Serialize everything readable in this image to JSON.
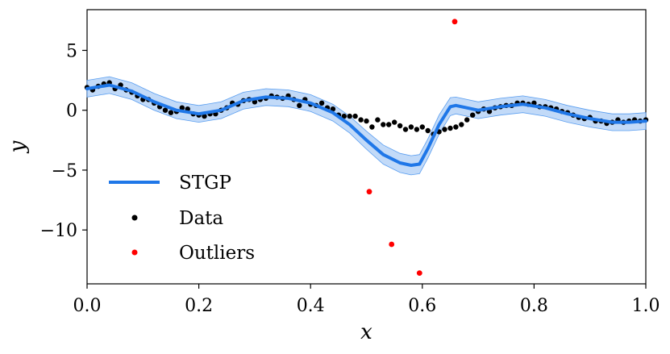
{
  "chart_data": {
    "type": "scatter",
    "title": "",
    "xlabel": "x",
    "ylabel": "y",
    "xlim": [
      0.0,
      1.0
    ],
    "ylim": [
      -14.5,
      8.4
    ],
    "xticks": [
      0.0,
      0.2,
      0.4,
      0.6,
      0.8,
      1.0
    ],
    "xtick_labels": [
      "0.0",
      "0.2",
      "0.4",
      "0.6",
      "0.8",
      "1.0"
    ],
    "yticks": [
      5,
      0,
      -5,
      -10
    ],
    "ytick_labels": [
      "5",
      "0",
      "−5",
      "−10"
    ],
    "grid": false,
    "legend": {
      "position": "lower-left",
      "entries": [
        "STGP",
        "Data",
        "Outliers"
      ]
    },
    "series": [
      {
        "name": "STGP",
        "kind": "line+band",
        "color": "#1f77e8",
        "band_color": "#aecdf5",
        "x": [
          0.0,
          0.04,
          0.08,
          0.12,
          0.16,
          0.2,
          0.24,
          0.28,
          0.32,
          0.36,
          0.4,
          0.44,
          0.47,
          0.5,
          0.53,
          0.56,
          0.58,
          0.595,
          0.61,
          0.63,
          0.65,
          0.66,
          0.7,
          0.74,
          0.78,
          0.82,
          0.86,
          0.9,
          0.94,
          0.97,
          1.0
        ],
        "y": [
          1.8,
          2.1,
          1.6,
          0.7,
          0.0,
          -0.3,
          0.0,
          0.8,
          1.1,
          1.0,
          0.6,
          -0.2,
          -1.2,
          -2.5,
          -3.7,
          -4.4,
          -4.6,
          -4.5,
          -3.2,
          -1.2,
          0.3,
          0.4,
          0.0,
          0.3,
          0.5,
          0.2,
          -0.3,
          -0.7,
          -1.0,
          -1.0,
          -0.9
        ],
        "band_halfwidth": [
          0.7,
          0.7,
          0.7,
          0.7,
          0.7,
          0.7,
          0.7,
          0.7,
          0.7,
          0.7,
          0.7,
          0.7,
          0.7,
          0.75,
          0.8,
          0.8,
          0.8,
          0.8,
          0.8,
          0.8,
          0.75,
          0.7,
          0.7,
          0.7,
          0.7,
          0.7,
          0.7,
          0.7,
          0.7,
          0.7,
          0.7
        ]
      },
      {
        "name": "Data",
        "kind": "points",
        "color": "#000000",
        "x": [
          0.0,
          0.01,
          0.02,
          0.03,
          0.04,
          0.05,
          0.06,
          0.07,
          0.08,
          0.09,
          0.1,
          0.11,
          0.12,
          0.13,
          0.14,
          0.15,
          0.16,
          0.17,
          0.18,
          0.19,
          0.2,
          0.21,
          0.22,
          0.23,
          0.24,
          0.25,
          0.26,
          0.27,
          0.28,
          0.29,
          0.3,
          0.31,
          0.32,
          0.33,
          0.34,
          0.35,
          0.36,
          0.37,
          0.38,
          0.39,
          0.4,
          0.41,
          0.42,
          0.43,
          0.44,
          0.45,
          0.46,
          0.47,
          0.48,
          0.49,
          0.5,
          0.51,
          0.52,
          0.53,
          0.54,
          0.55,
          0.56,
          0.57,
          0.58,
          0.59,
          0.6,
          0.61,
          0.62,
          0.63,
          0.64,
          0.65,
          0.66,
          0.67,
          0.68,
          0.69,
          0.7,
          0.71,
          0.72,
          0.73,
          0.74,
          0.75,
          0.76,
          0.77,
          0.78,
          0.79,
          0.8,
          0.81,
          0.82,
          0.83,
          0.84,
          0.85,
          0.86,
          0.87,
          0.88,
          0.89,
          0.9,
          0.91,
          0.92,
          0.93,
          0.94,
          0.95,
          0.96,
          0.97,
          0.98,
          0.99,
          1.0
        ],
        "y": [
          1.9,
          1.7,
          2.0,
          2.2,
          2.3,
          1.8,
          2.1,
          1.7,
          1.5,
          1.2,
          0.9,
          0.9,
          0.6,
          0.3,
          0.0,
          -0.2,
          -0.1,
          0.2,
          0.1,
          -0.3,
          -0.4,
          -0.5,
          -0.3,
          -0.3,
          0.0,
          0.2,
          0.6,
          0.5,
          0.8,
          0.9,
          0.7,
          0.9,
          1.0,
          1.2,
          1.1,
          1.0,
          1.2,
          0.9,
          0.4,
          0.9,
          0.5,
          0.4,
          0.6,
          0.2,
          0.1,
          -0.4,
          -0.5,
          -0.5,
          -0.5,
          -0.8,
          -0.9,
          -1.4,
          -0.8,
          -1.2,
          -1.2,
          -1.0,
          -1.3,
          -1.6,
          -1.4,
          -1.6,
          -1.4,
          -1.7,
          -2.0,
          -1.8,
          -1.6,
          -1.5,
          -1.4,
          -1.2,
          -0.8,
          -0.4,
          -0.1,
          0.1,
          -0.1,
          0.2,
          0.3,
          0.4,
          0.4,
          0.6,
          0.6,
          0.5,
          0.6,
          0.3,
          0.3,
          0.2,
          0.1,
          -0.1,
          -0.2,
          -0.4,
          -0.6,
          -0.7,
          -0.6,
          -0.9,
          -0.9,
          -1.1,
          -1.0,
          -0.8,
          -1.0,
          -0.9,
          -0.8,
          -0.9,
          -0.8
        ]
      },
      {
        "name": "Outliers",
        "kind": "points",
        "color": "#ff0000",
        "x": [
          0.505,
          0.545,
          0.595,
          0.658
        ],
        "y": [
          -6.8,
          -11.2,
          -13.6,
          7.4
        ]
      }
    ]
  }
}
